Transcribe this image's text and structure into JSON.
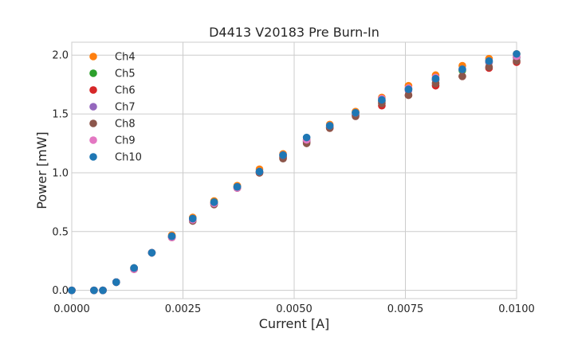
{
  "chart_data": {
    "type": "scatter",
    "title": "D4413 V20183 Pre Burn-In",
    "xlabel": "Current [A]",
    "ylabel": "Power [mW]",
    "xlim": [
      0,
      0.01
    ],
    "ylim": [
      -0.07,
      2.11
    ],
    "x_ticks": [
      0.0,
      0.0025,
      0.005,
      0.0075,
      0.01
    ],
    "x_tick_labels": [
      "0.0000",
      "0.0025",
      "0.0050",
      "0.0075",
      "0.0100"
    ],
    "y_ticks": [
      0.0,
      0.5,
      1.0,
      1.5,
      2.0
    ],
    "y_tick_labels": [
      "0.0",
      "0.5",
      "1.0",
      "1.5",
      "2.0"
    ],
    "grid": true,
    "legend": "top-left",
    "x": [
      0.0,
      0.0005,
      0.0007,
      0.001,
      0.0014,
      0.0018,
      0.00225,
      0.00272,
      0.0032,
      0.00372,
      0.00422,
      0.00475,
      0.00528,
      0.0058,
      0.00638,
      0.00697,
      0.00757,
      0.00818,
      0.00878,
      0.00938,
      0.01
    ],
    "series": [
      {
        "name": "Ch4",
        "color": "#ff7f0e",
        "values": [
          0.0,
          0.0,
          0.0,
          0.07,
          0.19,
          0.32,
          0.47,
          0.62,
          0.76,
          0.89,
          1.03,
          1.16,
          1.28,
          1.41,
          1.52,
          1.64,
          1.74,
          1.83,
          1.91,
          1.97,
          2.01
        ]
      },
      {
        "name": "Ch5",
        "color": "#2ca02c",
        "values": [
          0.0,
          0.0,
          0.0,
          0.07,
          0.19,
          0.32,
          0.46,
          0.61,
          0.75,
          0.88,
          1.01,
          1.14,
          1.27,
          1.39,
          1.51,
          1.61,
          1.71,
          1.79,
          1.87,
          1.94,
          1.98
        ]
      },
      {
        "name": "Ch6",
        "color": "#d62728",
        "values": [
          0.0,
          0.0,
          0.0,
          0.07,
          0.18,
          0.32,
          0.45,
          0.6,
          0.74,
          0.87,
          1.0,
          1.13,
          1.26,
          1.38,
          1.49,
          1.57,
          1.66,
          1.74,
          1.82,
          1.89,
          1.94
        ]
      },
      {
        "name": "Ch7",
        "color": "#9467bd",
        "values": [
          0.0,
          0.0,
          0.0,
          0.07,
          0.19,
          0.32,
          0.46,
          0.61,
          0.74,
          0.88,
          1.01,
          1.15,
          1.27,
          1.39,
          1.49,
          1.61,
          1.7,
          1.79,
          1.88,
          1.94,
          1.98
        ]
      },
      {
        "name": "Ch8",
        "color": "#8c564b",
        "values": [
          0.0,
          0.0,
          0.0,
          0.07,
          0.18,
          0.32,
          0.45,
          0.59,
          0.73,
          0.87,
          1.0,
          1.12,
          1.25,
          1.38,
          1.48,
          1.59,
          1.66,
          1.76,
          1.82,
          1.9,
          1.95
        ]
      },
      {
        "name": "Ch9",
        "color": "#e377c2",
        "values": [
          0.0,
          0.0,
          0.0,
          0.07,
          0.18,
          0.32,
          0.45,
          0.6,
          0.74,
          0.87,
          1.01,
          1.15,
          1.28,
          1.4,
          1.51,
          1.63,
          1.72,
          1.81,
          1.88,
          1.95,
          1.99
        ]
      },
      {
        "name": "Ch10",
        "color": "#1f77b4",
        "values": [
          0.0,
          0.0,
          0.0,
          0.07,
          0.19,
          0.32,
          0.46,
          0.61,
          0.75,
          0.88,
          1.01,
          1.15,
          1.3,
          1.4,
          1.51,
          1.62,
          1.71,
          1.8,
          1.88,
          1.95,
          2.01
        ]
      }
    ]
  }
}
